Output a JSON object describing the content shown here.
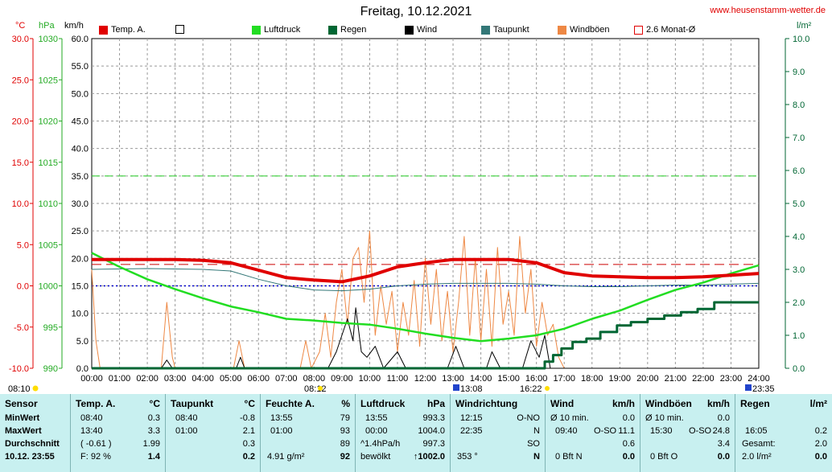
{
  "header": {
    "title": "Freitag, 10.12.2021",
    "site": "www.heusenstamm-wetter.de"
  },
  "units": {
    "temp": "°C",
    "pressure": "hPa",
    "wind": "km/h",
    "rain": "l/m²"
  },
  "legend": [
    {
      "label": "Temp. A.",
      "color": "#e00000",
      "filled": true
    },
    {
      "label": "",
      "color": "#ffffff",
      "filled": false
    },
    {
      "label": "Luftdruck",
      "color": "#22dd22",
      "filled": true
    },
    {
      "label": "Regen",
      "color": "#006633",
      "filled": true
    },
    {
      "label": "Wind",
      "color": "#000000",
      "filled": true
    },
    {
      "label": "Taupunkt",
      "color": "#337777",
      "filled": true
    },
    {
      "label": "Windböen",
      "color": "#ee8844",
      "filled": true
    },
    {
      "label": "2.6 Monat-Ø",
      "color": "#e00000",
      "filled": false
    }
  ],
  "chart_data": {
    "type": "line",
    "x_ticks": [
      "00:00",
      "01:00",
      "02:00",
      "03:00",
      "04:00",
      "05:00",
      "06:00",
      "07:00",
      "08:00",
      "09:00",
      "10:00",
      "11:00",
      "12:00",
      "13:00",
      "14:00",
      "15:00",
      "16:00",
      "17:00",
      "18:00",
      "19:00",
      "20:00",
      "21:00",
      "22:00",
      "23:00",
      "24:00"
    ],
    "axes": {
      "temp": {
        "ticks": [
          "30.0",
          "25.0",
          "20.0",
          "15.0",
          "10.0",
          "5.0",
          "0.0",
          "-5.0",
          "-10.0"
        ],
        "range": [
          -10,
          30
        ]
      },
      "pressure": {
        "ticks": [
          "1030",
          "1025",
          "1020",
          "1015",
          "1010",
          "1005",
          "1000",
          "995",
          "990"
        ],
        "range": [
          990,
          1030
        ]
      },
      "wind": {
        "ticks": [
          "60.0",
          "55.0",
          "50.0",
          "45.0",
          "40.0",
          "35.0",
          "30.0",
          "25.0",
          "20.0",
          "15.0",
          "10.0",
          "5.0",
          "0.0"
        ],
        "range": [
          0,
          60
        ]
      },
      "rain": {
        "ticks": [
          "10.0",
          "9.0",
          "8.0",
          "7.0",
          "6.0",
          "5.0",
          "4.0",
          "3.0",
          "2.0",
          "1.0",
          "0.0"
        ],
        "range": [
          0,
          10
        ]
      }
    },
    "sun_markers": {
      "sunrise": "08:10",
      "noon_left": "08:12",
      "noon": "13:08",
      "sunset": "16:22",
      "end": "23:35"
    },
    "reference_lines": {
      "month_avg_temp": 2.6,
      "dashed_green_wind": 35.0,
      "dotted_blue_temp": 0.0
    },
    "series": [
      {
        "name": "Temp. A.",
        "axis": "temp",
        "color": "#e00000",
        "x": [
          0,
          1,
          2,
          3,
          4,
          5,
          6,
          7,
          8,
          9,
          10,
          11,
          12,
          13,
          14,
          15,
          16,
          17,
          18,
          19,
          20,
          21,
          22,
          23,
          24
        ],
        "values": [
          3.2,
          3.2,
          3.2,
          3.2,
          3.1,
          2.8,
          1.9,
          1.0,
          0.7,
          0.5,
          1.2,
          2.3,
          2.8,
          3.2,
          3.2,
          3.2,
          2.8,
          1.6,
          1.2,
          1.1,
          1.0,
          1.0,
          1.1,
          1.3,
          1.5
        ]
      },
      {
        "name": "Taupunkt",
        "axis": "temp",
        "color": "#337777",
        "x": [
          0,
          2,
          4,
          5,
          6,
          7,
          8,
          9,
          10,
          11,
          12,
          13,
          14,
          15,
          16,
          17,
          18,
          19,
          20,
          21,
          22,
          23,
          24
        ],
        "values": [
          2.0,
          2.1,
          2.0,
          1.8,
          0.8,
          0.0,
          -0.5,
          -0.6,
          -0.4,
          0.0,
          0.2,
          0.3,
          0.3,
          0.3,
          0.2,
          0.0,
          -0.1,
          -0.1,
          0.0,
          0.1,
          0.1,
          0.2,
          0.3
        ]
      },
      {
        "name": "Luftdruck",
        "axis": "pressure",
        "color": "#22dd22",
        "x": [
          0,
          1,
          2,
          3,
          4,
          5,
          6,
          7,
          8,
          9,
          10,
          11,
          12,
          13,
          14,
          15,
          16,
          17,
          18,
          19,
          20,
          21,
          22,
          23,
          24
        ],
        "values": [
          1004.0,
          1002.3,
          1000.8,
          999.6,
          998.5,
          997.5,
          996.8,
          996.0,
          995.8,
          995.5,
          995.3,
          994.8,
          994.2,
          993.7,
          993.3,
          993.6,
          994.0,
          994.8,
          996.0,
          997.0,
          998.3,
          999.5,
          1000.4,
          1001.5,
          1002.5
        ]
      },
      {
        "name": "Regen",
        "axis": "rain",
        "color": "#006633",
        "x": [
          0,
          16.0,
          16.3,
          16.6,
          16.9,
          17.3,
          17.8,
          18.3,
          18.9,
          19.4,
          20.0,
          20.6,
          21.2,
          21.8,
          22.4,
          23.0,
          24.0
        ],
        "values": [
          0,
          0,
          0.2,
          0.4,
          0.6,
          0.8,
          0.9,
          1.1,
          1.3,
          1.4,
          1.5,
          1.6,
          1.7,
          1.8,
          2.0,
          2.0,
          2.0
        ]
      },
      {
        "name": "Wind",
        "axis": "wind",
        "color": "#000000",
        "x": [
          0,
          2.5,
          2.7,
          2.9,
          5.2,
          5.35,
          5.5,
          8.5,
          8.8,
          9.0,
          9.2,
          9.4,
          9.5,
          9.7,
          9.9,
          10.2,
          10.5,
          11.0,
          11.3,
          12.8,
          13.1,
          13.4,
          14.2,
          14.4,
          14.7,
          15.5,
          15.8,
          16.1,
          16.3,
          16.5,
          16.8,
          24
        ],
        "values": [
          0,
          0,
          1.5,
          0,
          0,
          2.0,
          0,
          0,
          3.0,
          6.0,
          9.0,
          5.0,
          11.0,
          3.0,
          2.0,
          4.0,
          0,
          3.0,
          0,
          0,
          4.0,
          0,
          0,
          3.0,
          0,
          0,
          5.0,
          2.0,
          6.0,
          0,
          0,
          0
        ]
      },
      {
        "name": "Windböen",
        "axis": "wind",
        "color": "#ee8844",
        "x": [
          0,
          0.15,
          0.3,
          2.5,
          2.7,
          2.9,
          3.0,
          5.1,
          5.3,
          5.5,
          7.5,
          7.7,
          7.9,
          8.2,
          8.4,
          8.6,
          8.8,
          9.0,
          9.2,
          9.4,
          9.6,
          9.8,
          10.0,
          10.2,
          10.4,
          10.6,
          10.8,
          11.0,
          11.2,
          11.4,
          11.6,
          11.8,
          12.0,
          12.2,
          12.4,
          12.6,
          12.8,
          13.0,
          13.2,
          13.4,
          13.6,
          13.8,
          14.0,
          14.2,
          14.4,
          14.6,
          14.8,
          15.0,
          15.2,
          15.4,
          15.6,
          15.8,
          16.0,
          16.2,
          16.4,
          16.6,
          16.8,
          17.0,
          24
        ],
        "values": [
          18,
          5,
          0,
          0,
          12,
          2,
          0,
          0,
          5,
          0,
          0,
          5,
          0,
          3,
          10,
          2,
          12,
          18,
          8,
          20,
          22,
          12,
          25,
          6,
          15,
          8,
          14,
          3,
          12,
          6,
          16,
          4,
          20,
          8,
          18,
          5,
          14,
          3,
          12,
          24,
          6,
          20,
          5,
          18,
          4,
          22,
          8,
          14,
          6,
          24,
          10,
          18,
          4,
          12,
          6,
          8,
          2,
          0,
          0
        ]
      }
    ]
  },
  "table": {
    "row_labels": {
      "header": "Sensor",
      "min": "MinWert",
      "max": "MaxWert",
      "avg": "Durchschnitt",
      "date": "10.12. 23:55"
    },
    "temp": {
      "title": "Temp. A.",
      "unit": "°C",
      "min_time": "08:40",
      "min_val": "0.3",
      "max_time": "13:40",
      "max_val": "3.3",
      "avg_note": "( -0.61 )",
      "avg_val": "1.99",
      "foot_left": "F: 92 %",
      "foot_val": "1.4"
    },
    "dew": {
      "title": "Taupunkt",
      "unit": "°C",
      "min_time": "08:40",
      "min_val": "-0.8",
      "max_time": "01:00",
      "max_val": "2.1",
      "avg_val": "0.3",
      "foot_val": "0.2"
    },
    "hum": {
      "title": "Feuchte A.",
      "unit": "%",
      "min_time": "13:55",
      "min_val": "79",
      "max_time": "01:00",
      "max_val": "93",
      "avg_val": "89",
      "foot_left": "4.91 g/m²",
      "foot_val": "92"
    },
    "pres": {
      "title": "Luftdruck",
      "unit": "hPa",
      "min_time": "13:55",
      "min_val": "993.3",
      "max_time": "00:00",
      "max_val": "1004.0",
      "avg_note": "^1.4hPa/h",
      "avg_val": "997.3",
      "foot_left": "bewölkt",
      "foot_val": "↑1002.0"
    },
    "dir": {
      "title": "Windrichtung",
      "min_time": "12:15",
      "min_val": "O-NO",
      "max_time": "22:35",
      "max_val": "N",
      "avg_val": "SO",
      "foot_left": "353 °",
      "foot_val": "N"
    },
    "wind": {
      "title": "Wind",
      "unit": "km/h",
      "min_time": "Ø 10 min.",
      "min_val": "0.0",
      "max_time": "09:40",
      "max_mid": "O-SO",
      "max_val": "11.1",
      "avg_val": "0.6",
      "foot_left": "0 Bft N",
      "foot_val": "0.0"
    },
    "gust": {
      "title": "Windböen",
      "unit": "km/h",
      "min_time": "Ø 10 min.",
      "min_val": "0.0",
      "max_time": "15:30",
      "max_mid": "O-SO",
      "max_val": "24.8",
      "avg_val": "3.4",
      "foot_left": "0 Bft O",
      "foot_val": "0.0"
    },
    "rain": {
      "title": "Regen",
      "unit": "l/m²",
      "max_time": "16:05",
      "max_val": "0.2",
      "avg_left": "Gesamt:",
      "avg_val": "2.0",
      "foot_left": "2.0 l/m²",
      "foot_val": "0.0"
    }
  }
}
